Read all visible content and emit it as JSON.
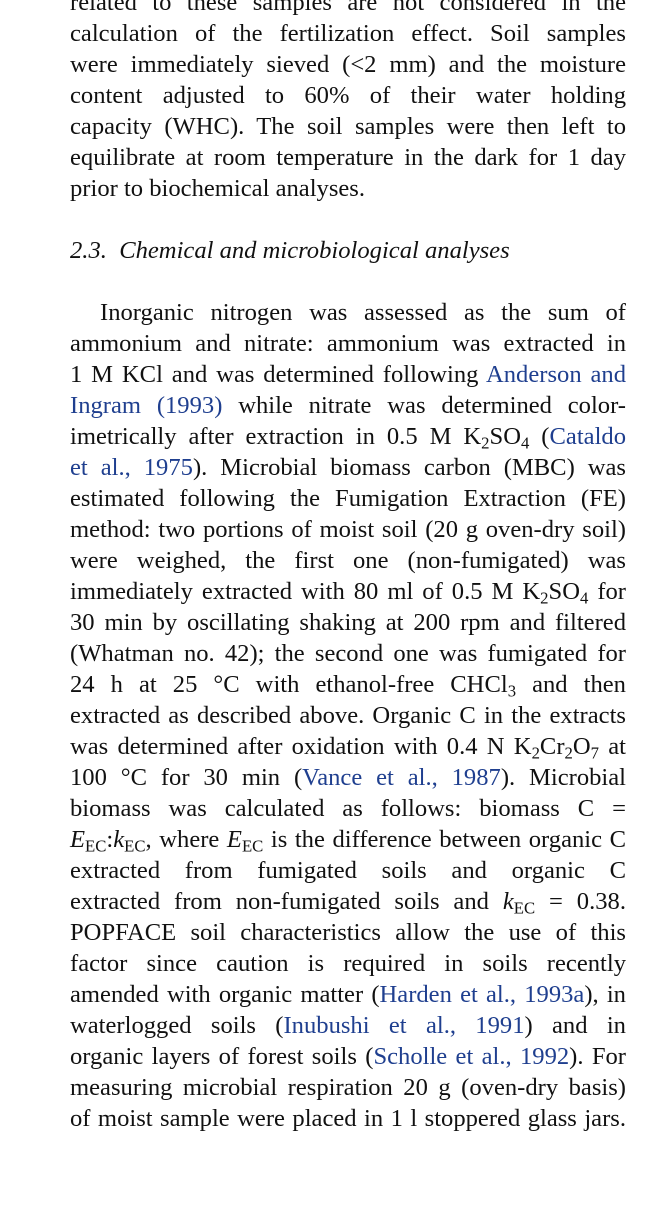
{
  "para1": {
    "lines": [
      "related to these samples are not considered in the",
      "calculation of the fertilization effect. Soil samples",
      "were immediately sieved (<2 mm) and the moisture",
      "content adjusted to 60% of their water holding",
      "capacity (WHC). The soil samples were then left to",
      "equilibrate at room temperature in the dark for 1 day",
      "prior to biochemical analyses."
    ]
  },
  "section": {
    "number": "2.3.",
    "title": "Chemical and microbiological analyses"
  },
  "para2": {
    "t": {
      "l1": "Inorganic nitrogen was assessed as the sum of",
      "l2": "ammonium and nitrate: ammonium was extracted in",
      "l3a": "1 M KCl and was determined following",
      "l4b": " while nitrate was determined color-",
      "l5a": "imetrically after extraction in 0.5 M K",
      "l5b": "SO",
      "l5c": " (",
      "l6b": "). Microbial biomass carbon (MBC) was",
      "l7": "estimated following the Fumigation Extraction (FE)",
      "l8": "method: two portions of moist soil (20 g oven-dry soil)",
      "l9": "were weighed, the first one (non-fumigated) was",
      "l10a": "immediately extracted with 80 ml of 0.5 M K",
      "l10b": "SO",
      "l10c": " for",
      "l11": "30 min by oscillating shaking at 200 rpm and filtered",
      "l12": "(Whatman no. 42); the second one was fumigated for",
      "l13a": "24 h at 25 °C with ethanol-free CHCl",
      "l13b": " and then",
      "l14": "extracted as described above. Organic C in the extracts",
      "l15a": "was determined after oxidation with 0.4 N K",
      "l15b": "Cr",
      "l15c": "O",
      "l15d": " at",
      "l16a": "100 °C for 30 min (",
      "l16b": "). Microbial",
      "l17": "biomass was calculated as follows: biomass C =",
      "l18a": "E",
      "l18b": ":",
      "l18c": "k",
      "l18d": ", where ",
      "l18e": "E",
      "l18f": " is the difference between organic C",
      "l19": "extracted from fumigated soils and organic C",
      "l20a": "extracted from non-fumigated soils and ",
      "l20b": "k",
      "l20c": " = 0.38.",
      "l21": "POPFACE soil characteristics allow the use of this",
      "l22": "factor since caution is required in soils recently",
      "l23a": "amended with organic matter (",
      "l23b": "), in",
      "l24a": "waterlogged soils (",
      "l24b": ") and in",
      "l25a": "organic layers of forest soils (",
      "l25b": "). For",
      "l26": "measuring microbial respiration 20 g (oven-dry basis)",
      "l27": "of moist sample were placed in 1 l stoppered glass jars."
    },
    "sub": {
      "two": "2",
      "four": "4",
      "three": "3",
      "seven": "7",
      "EC": "EC"
    },
    "cites": {
      "anderson_1": "Anderson and",
      "anderson_2": "Ingram (1993)",
      "cataldo_1": "Cataldo",
      "cataldo_2": "et al., 1975",
      "vance": "Vance et al., 1987",
      "harden": "Harden et al., 1993a",
      "inubushi": "Inubushi et al., 1991",
      "scholle": "Scholle et al., 1992"
    }
  },
  "colors": {
    "text": "#111111",
    "citation": "#1f3f8f"
  }
}
